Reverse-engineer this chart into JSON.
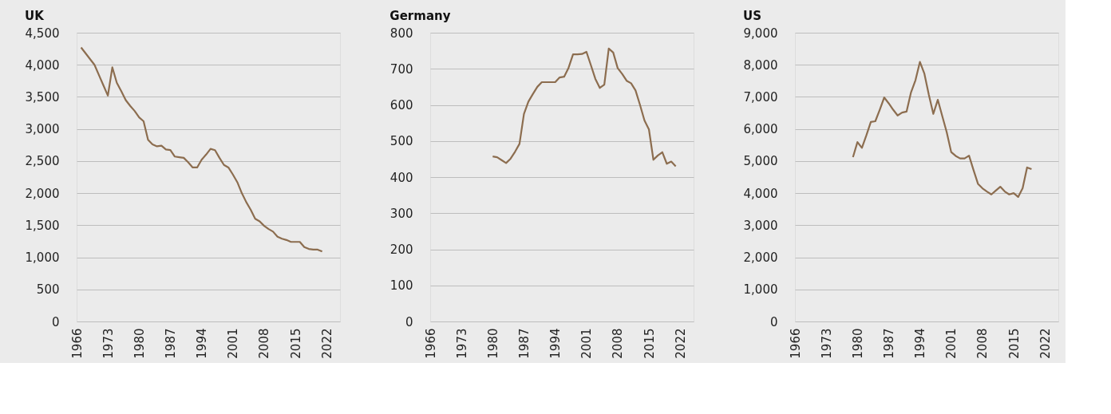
{
  "chart_data": [
    {
      "type": "line",
      "title": "UK",
      "grid": "y",
      "xlim": [
        1966,
        2025
      ],
      "xticks": [
        1966,
        1973,
        1980,
        1987,
        1994,
        2001,
        2008,
        2015,
        2022
      ],
      "ylim": [
        0,
        4500
      ],
      "yticks": [
        0,
        500,
        {
          "value": 1000,
          "label": "1,000"
        },
        {
          "value": 1500,
          "label": "1,500"
        },
        {
          "value": 2000,
          "label": "2,000"
        },
        {
          "value": 2500,
          "label": "2,500"
        },
        {
          "value": 3000,
          "label": "3,000"
        },
        {
          "value": 3500,
          "label": "3,500"
        },
        {
          "value": 4000,
          "label": "4,000"
        },
        {
          "value": 4500,
          "label": "4,500"
        }
      ],
      "x": [
        1967,
        1968,
        1969,
        1970,
        1971,
        1972,
        1973,
        1974,
        1975,
        1976,
        1977,
        1978,
        1979,
        1980,
        1981,
        1982,
        1983,
        1984,
        1985,
        1986,
        1987,
        1988,
        1989,
        1990,
        1991,
        1992,
        1993,
        1994,
        1995,
        1996,
        1997,
        1998,
        1999,
        2000,
        2001,
        2002,
        2003,
        2004,
        2005,
        2006,
        2007,
        2008,
        2009,
        2010,
        2011,
        2012,
        2013,
        2014,
        2015,
        2016,
        2017,
        2018,
        2019,
        2020,
        2021
      ],
      "series": [
        {
          "color": "#8c6d4f",
          "values": [
            4270,
            4180,
            4090,
            4000,
            3840,
            3680,
            3520,
            3960,
            3720,
            3590,
            3450,
            3360,
            3280,
            3180,
            3120,
            2830,
            2760,
            2730,
            2740,
            2680,
            2670,
            2570,
            2560,
            2550,
            2480,
            2400,
            2400,
            2520,
            2600,
            2690,
            2670,
            2550,
            2440,
            2400,
            2290,
            2170,
            2000,
            1860,
            1740,
            1600,
            1560,
            1490,
            1440,
            1400,
            1320,
            1290,
            1270,
            1240,
            1240,
            1240,
            1160,
            1130,
            1120,
            1120,
            1090
          ]
        }
      ]
    },
    {
      "type": "line",
      "title": "Germany",
      "grid": "y",
      "xlim": [
        1966,
        2025
      ],
      "xticks": [
        1966,
        1973,
        1980,
        1987,
        1994,
        2001,
        2008,
        2015,
        2022
      ],
      "ylim": [
        0,
        800
      ],
      "yticks": [
        0,
        100,
        200,
        300,
        400,
        500,
        600,
        700,
        800
      ],
      "x": [
        1980,
        1981,
        1982,
        1983,
        1984,
        1985,
        1986,
        1987,
        1988,
        1989,
        1990,
        1991,
        1992,
        1993,
        1994,
        1995,
        1996,
        1997,
        1998,
        1999,
        2000,
        2001,
        2002,
        2003,
        2004,
        2005,
        2006,
        2007,
        2008,
        2009,
        2010,
        2011,
        2012,
        2013,
        2014,
        2015,
        2016,
        2017,
        2018,
        2019,
        2020,
        2021
      ],
      "series": [
        {
          "color": "#8c6d4f",
          "values": [
            457,
            455,
            447,
            439,
            451,
            470,
            492,
            575,
            609,
            630,
            650,
            663,
            663,
            663,
            663,
            676,
            678,
            703,
            740,
            740,
            741,
            747,
            710,
            672,
            647,
            656,
            756,
            745,
            702,
            686,
            667,
            660,
            640,
            600,
            557,
            532,
            448,
            460,
            469,
            437,
            443,
            430
          ]
        }
      ]
    },
    {
      "type": "line",
      "title": "US",
      "grid": "y",
      "xlim": [
        1966,
        2025
      ],
      "xticks": [
        1966,
        1973,
        1980,
        1987,
        1994,
        2001,
        2008,
        2015,
        2022
      ],
      "ylim": [
        0,
        9000
      ],
      "yticks": [
        0,
        {
          "value": 1000,
          "label": "1,000"
        },
        {
          "value": 2000,
          "label": "2,000"
        },
        {
          "value": 3000,
          "label": "3,000"
        },
        {
          "value": 4000,
          "label": "4,000"
        },
        {
          "value": 5000,
          "label": "5,000"
        },
        {
          "value": 6000,
          "label": "6,000"
        },
        {
          "value": 7000,
          "label": "7,000"
        },
        {
          "value": 8000,
          "label": "8,000"
        },
        {
          "value": 9000,
          "label": "9,000"
        }
      ],
      "x": [
        1979,
        1980,
        1981,
        1982,
        1983,
        1984,
        1985,
        1986,
        1987,
        1988,
        1989,
        1990,
        1991,
        1992,
        1993,
        1994,
        1995,
        1996,
        1997,
        1998,
        1999,
        2000,
        2001,
        2002,
        2003,
        2004,
        2005,
        2006,
        2007,
        2008,
        2009,
        2010,
        2011,
        2012,
        2013,
        2014,
        2015,
        2016,
        2017,
        2018,
        2019
      ],
      "series": [
        {
          "color": "#8c6d4f",
          "values": [
            5120,
            5590,
            5410,
            5800,
            6220,
            6240,
            6600,
            6980,
            6800,
            6600,
            6420,
            6510,
            6540,
            7140,
            7520,
            8090,
            7720,
            7060,
            6470,
            6910,
            6400,
            5900,
            5280,
            5160,
            5080,
            5080,
            5170,
            4720,
            4290,
            4150,
            4050,
            3960,
            4080,
            4200,
            4050,
            3960,
            4000,
            3880,
            4150,
            4800,
            4750
          ]
        }
      ]
    }
  ]
}
